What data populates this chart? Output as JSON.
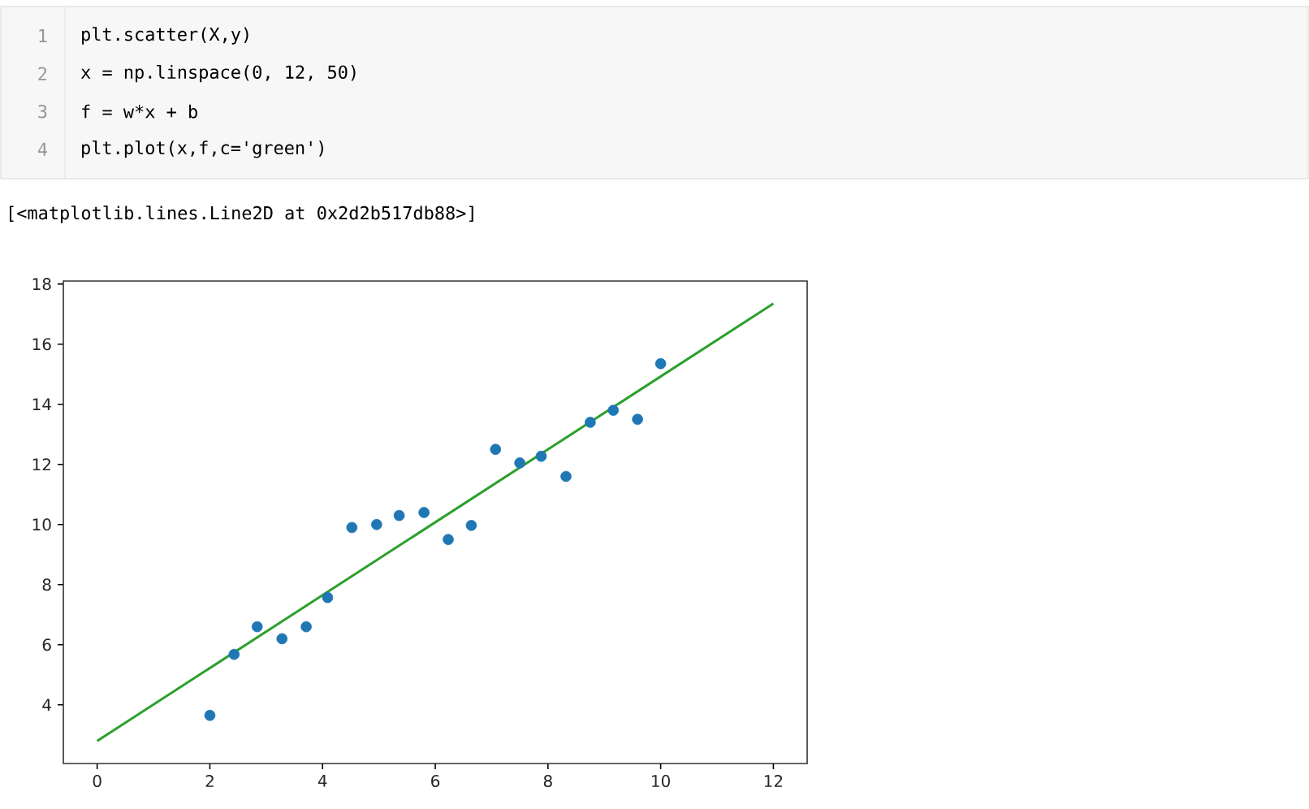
{
  "chart_data": {
    "type": "scatter",
    "annotations": [
      "1",
      "plt.scatter(X,y)",
      "2",
      "x = np.linspace(0, 12, 50)",
      "3",
      "f = w*x + b",
      "4",
      "plt.plot(x,f,c='green')",
      "[<matplotlib.lines.Line2D at 0x2d2b517db88>]"
    ],
    "xlim": [
      -0.6,
      12.6
    ],
    "ylim": [
      2.05,
      18.1
    ],
    "xticks": [
      0,
      2,
      4,
      6,
      8,
      10,
      12
    ],
    "yticks": [
      4,
      6,
      8,
      10,
      12,
      14,
      16,
      18
    ],
    "series": [
      {
        "marker": "circle",
        "color": "#1f77b4",
        "x": [
          2.0,
          2.43,
          2.84,
          3.28,
          3.71,
          4.09,
          4.52,
          4.96,
          5.36,
          5.8,
          6.23,
          6.64,
          7.07,
          7.5,
          7.88,
          8.32,
          8.75,
          9.16,
          9.59,
          10.0
        ],
        "values": [
          3.65,
          5.68,
          6.6,
          6.2,
          6.6,
          7.57,
          9.9,
          10.0,
          10.3,
          10.4,
          9.5,
          9.97,
          12.5,
          12.05,
          12.27,
          11.6,
          13.4,
          13.8,
          13.5,
          15.35
        ]
      },
      {
        "type": "line",
        "color": "#2ca02c",
        "x": [
          0,
          12
        ],
        "values": [
          2.8,
          17.35
        ]
      }
    ]
  }
}
